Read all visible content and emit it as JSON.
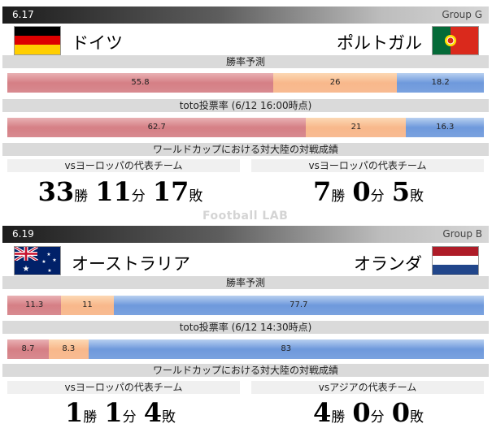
{
  "watermark": "Football LAB",
  "matches": [
    {
      "date": "6.17",
      "group": "Group G",
      "home": {
        "name": "ドイツ",
        "flag": "germany-flag-icon"
      },
      "away": {
        "name": "ポルトガル",
        "flag": "portugal-flag-icon"
      },
      "win_prob": {
        "label": "勝率予測",
        "home": 55.8,
        "draw": 26,
        "away": 18.2,
        "home_text": "55.8",
        "draw_text": "26",
        "away_text": "18.2"
      },
      "toto": {
        "label": "toto投票率 (6/12 16:00時点)",
        "home": 62.7,
        "draw": 21,
        "away": 16.3,
        "home_text": "62.7",
        "draw_text": "21",
        "away_text": "16.3"
      },
      "record_label": "ワールドカップにおける対大陸の対戦成績",
      "home_vs": "vsヨーロッパの代表チーム",
      "away_vs": "vsヨーロッパの代表チーム",
      "home_record": {
        "w": "33",
        "d": "11",
        "l": "17"
      },
      "away_record": {
        "w": "7",
        "d": "0",
        "l": "5"
      }
    },
    {
      "date": "6.19",
      "group": "Group B",
      "home": {
        "name": "オーストラリア",
        "flag": "australia-flag-icon"
      },
      "away": {
        "name": "オランダ",
        "flag": "netherlands-flag-icon"
      },
      "win_prob": {
        "label": "勝率予測",
        "home": 11.3,
        "draw": 11,
        "away": 77.7,
        "home_text": "11.3",
        "draw_text": "11",
        "away_text": "77.7"
      },
      "toto": {
        "label": "toto投票率 (6/12 14:30時点)",
        "home": 8.7,
        "draw": 8.3,
        "away": 83,
        "home_text": "8.7",
        "draw_text": "8.3",
        "away_text": "83"
      },
      "record_label": "ワールドカップにおける対大陸の対戦成績",
      "home_vs": "vsヨーロッパの代表チーム",
      "away_vs": "vsアジアの代表チーム",
      "home_record": {
        "w": "1",
        "d": "1",
        "l": "4"
      },
      "away_record": {
        "w": "4",
        "d": "0",
        "l": "0"
      }
    }
  ],
  "units": {
    "win": "勝",
    "draw": "分",
    "loss": "敗"
  },
  "colors": {
    "home": "#d57f85",
    "draw": "#f8b88b",
    "away": "#6e99dc"
  }
}
